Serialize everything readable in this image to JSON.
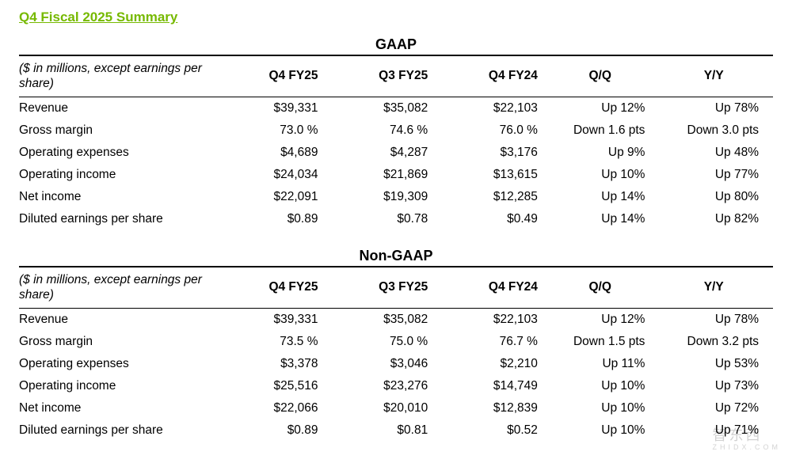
{
  "title": "Q4 Fiscal 2025 Summary",
  "title_color": "#76b900",
  "tables": [
    {
      "name": "GAAP",
      "note": "($ in millions, except earnings per share)",
      "columns": [
        "Q4 FY25",
        "Q3 FY25",
        "Q4 FY24",
        "Q/Q",
        "Y/Y"
      ],
      "rows": [
        {
          "label": "Revenue",
          "v": [
            "$39,331",
            "$35,082",
            "$22,103"
          ],
          "qq": "Up 12%",
          "yy": "Up 78%"
        },
        {
          "label": "Gross margin",
          "v": [
            "73.0 %",
            "74.6 %",
            "76.0 %"
          ],
          "qq": "Down 1.6 pts",
          "yy": "Down 3.0 pts"
        },
        {
          "label": "Operating expenses",
          "v": [
            "$4,689",
            "$4,287",
            "$3,176"
          ],
          "qq": "Up 9%",
          "yy": "Up 48%"
        },
        {
          "label": "Operating income",
          "v": [
            "$24,034",
            "$21,869",
            "$13,615"
          ],
          "qq": "Up 10%",
          "yy": "Up 77%"
        },
        {
          "label": "Net income",
          "v": [
            "$22,091",
            "$19,309",
            "$12,285"
          ],
          "qq": "Up 14%",
          "yy": "Up 80%"
        },
        {
          "label": "Diluted earnings per share",
          "v": [
            "$0.89",
            "$0.78",
            "$0.49"
          ],
          "qq": "Up 14%",
          "yy": "Up 82%"
        }
      ]
    },
    {
      "name": "Non-GAAP",
      "note": "($ in millions, except earnings per share)",
      "columns": [
        "Q4 FY25",
        "Q3 FY25",
        "Q4 FY24",
        "Q/Q",
        "Y/Y"
      ],
      "rows": [
        {
          "label": "Revenue",
          "v": [
            "$39,331",
            "$35,082",
            "$22,103"
          ],
          "qq": "Up 12%",
          "yy": "Up 78%"
        },
        {
          "label": "Gross margin",
          "v": [
            "73.5 %",
            "75.0 %",
            "76.7 %"
          ],
          "qq": "Down 1.5 pts",
          "yy": "Down 3.2 pts"
        },
        {
          "label": "Operating expenses",
          "v": [
            "$3,378",
            "$3,046",
            "$2,210"
          ],
          "qq": "Up 11%",
          "yy": "Up 53%"
        },
        {
          "label": "Operating income",
          "v": [
            "$25,516",
            "$23,276",
            "$14,749"
          ],
          "qq": "Up 10%",
          "yy": "Up 73%"
        },
        {
          "label": "Net income",
          "v": [
            "$22,066",
            "$20,010",
            "$12,839"
          ],
          "qq": "Up 10%",
          "yy": "Up 72%"
        },
        {
          "label": "Diluted earnings per share",
          "v": [
            "$0.89",
            "$0.81",
            "$0.52"
          ],
          "qq": "Up 10%",
          "yy": "Up 71%"
        }
      ]
    }
  ],
  "watermark": {
    "main": "智东西",
    "sub": "ZHIDX.COM"
  }
}
